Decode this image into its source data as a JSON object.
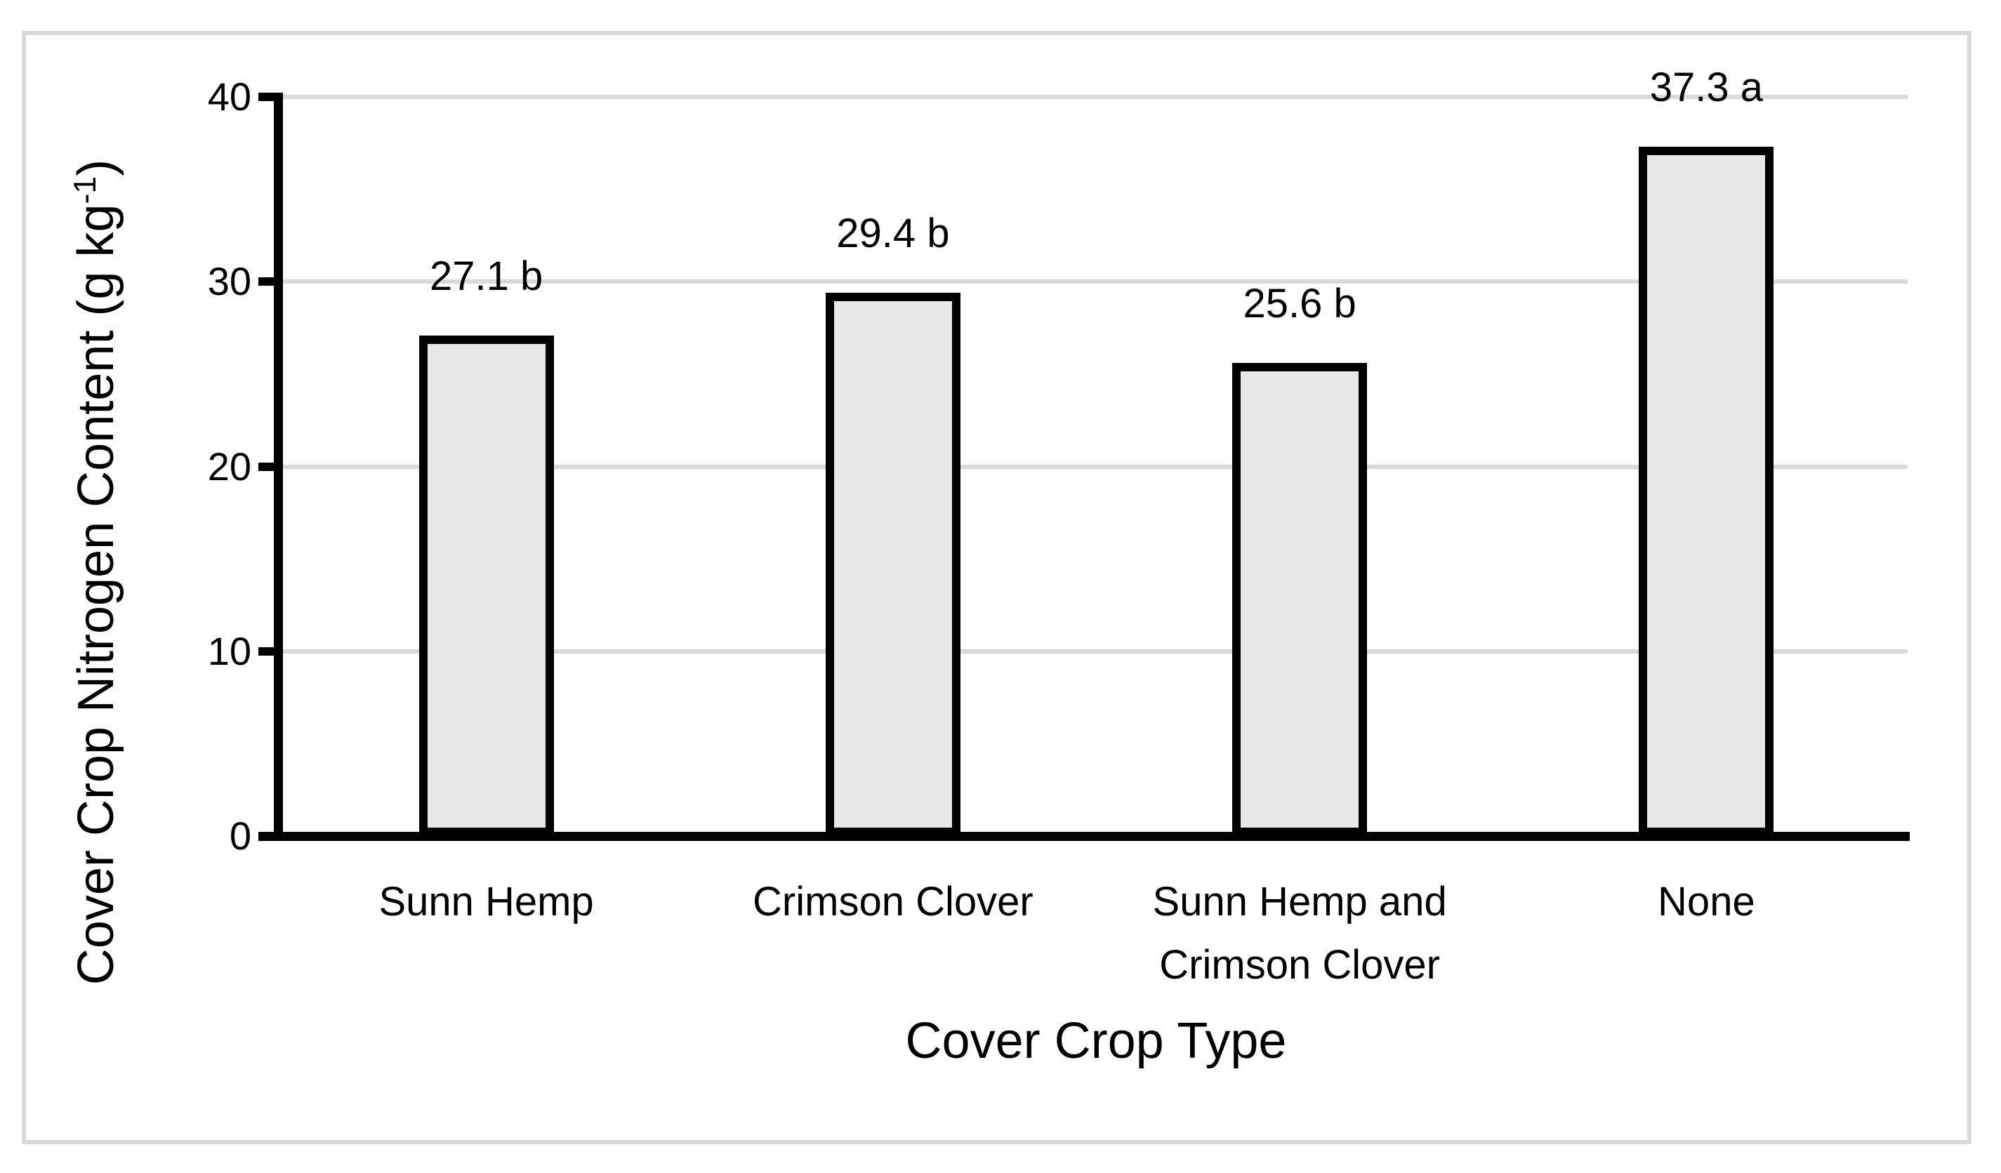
{
  "figure": {
    "background": "#ffffff",
    "frame_color": "#d9d9d9"
  },
  "chart_data": {
    "type": "bar",
    "title": "",
    "xlabel": "Cover Crop Type",
    "ylabel": "Cover Crop Nitrogen Content (g kg⁻¹)",
    "ylabel_parts": {
      "main": "Cover Crop Nitrogen Content  (g kg",
      "sup": "-1",
      "close": ")"
    },
    "categories": [
      "Sunn Hemp",
      "Crimson Clover",
      "Sunn Hemp and Crimson Clover",
      "None"
    ],
    "values": [
      27.1,
      29.4,
      25.6,
      37.3
    ],
    "bar_labels": [
      "27.1 b",
      "29.4 b",
      "25.6 b",
      "37.3 a"
    ],
    "significance_letters": [
      "b",
      "b",
      "b",
      "a"
    ],
    "ylim": [
      0,
      40
    ],
    "yticks": [
      0,
      10,
      20,
      30,
      40
    ],
    "grid": "horizontal",
    "legend_position": "none",
    "colors": {
      "bar_fill": "#e6e6e6",
      "bar_border": "#000000",
      "gridline": "#d9d9d9",
      "axis": "#000000",
      "text": "#000000"
    }
  }
}
